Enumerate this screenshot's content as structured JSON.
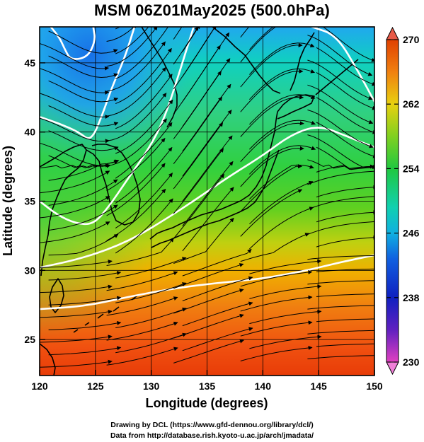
{
  "title": "MSM 06Z01May2025 (500.0hPa)",
  "credits": {
    "line1": "Drawing by DCL (https://www.gfd-dennou.org/library/dcl/)",
    "line2": "Data from http://database.rish.kyoto-u.ac.jp/arch/jmadata/"
  },
  "chart_data": {
    "type": "heatmap",
    "title": "MSM 06Z01May2025 (500.0hPa)",
    "xlabel": "Longitude (degrees)",
    "ylabel": "Latitude  (degrees)",
    "xlim": [
      120,
      150
    ],
    "ylim": [
      22.4,
      47.6
    ],
    "x_ticks": [
      120,
      125,
      130,
      135,
      140,
      145,
      150
    ],
    "y_ticks": [
      25,
      30,
      35,
      40,
      45
    ],
    "grid": true,
    "overlay": "streamlines of wind with arrowheads, white contour lines, black coastlines",
    "colorbar": {
      "min": 230,
      "max": 270,
      "ticks": [
        230,
        238,
        246,
        254,
        262,
        270
      ],
      "placement": "right",
      "colors": [
        "#e040c0",
        "#1020c0",
        "#10b0e0",
        "#20c840",
        "#e8d010",
        "#e04000"
      ]
    },
    "contours": [
      {
        "value": 246,
        "points": [
          [
            124.8,
            47.6
          ],
          [
            125.0,
            46.6
          ],
          [
            124.3,
            45.4
          ],
          [
            122.8,
            45.2
          ],
          [
            122.3,
            45.9
          ],
          [
            121.8,
            46.8
          ],
          [
            121.0,
            47.6
          ]
        ]
      },
      {
        "value": 250,
        "points": [
          [
            120.0,
            41.1
          ],
          [
            121.8,
            40.6
          ],
          [
            123.5,
            40.0
          ],
          [
            124.6,
            39.3
          ],
          [
            125.6,
            41.2
          ],
          [
            126.5,
            43.3
          ],
          [
            127.6,
            45.3
          ],
          [
            128.5,
            47.6
          ]
        ]
      },
      {
        "value": 254,
        "points": [
          [
            120.0,
            35.0
          ],
          [
            121.6,
            34.0
          ],
          [
            123.2,
            33.4
          ],
          [
            124.8,
            33.3
          ],
          [
            126.2,
            34.6
          ],
          [
            127.8,
            36.5
          ],
          [
            129.8,
            38.8
          ],
          [
            131.2,
            41.0
          ],
          [
            132.6,
            44.5
          ],
          [
            133.8,
            47.6
          ]
        ]
      },
      {
        "value": 254,
        "points": [
          [
            144.4,
            47.6
          ],
          [
            146.6,
            47.0
          ],
          [
            148.6,
            44.3
          ],
          [
            150.0,
            42.2
          ]
        ]
      },
      {
        "value": 258,
        "points": [
          [
            120.0,
            30.2
          ],
          [
            124.0,
            30.9
          ],
          [
            128.0,
            32.1
          ],
          [
            131.5,
            33.8
          ],
          [
            134.5,
            35.4
          ],
          [
            137.0,
            36.8
          ],
          [
            140.0,
            38.3
          ],
          [
            142.5,
            39.8
          ],
          [
            145.0,
            40.5
          ],
          [
            147.5,
            39.7
          ],
          [
            150.0,
            38.9
          ]
        ]
      },
      {
        "value": 262,
        "points": [
          [
            120.0,
            27.2
          ],
          [
            124.0,
            27.4
          ],
          [
            128.0,
            28.1
          ],
          [
            132.0,
            28.7
          ],
          [
            136.0,
            29.1
          ],
          [
            140.0,
            29.4
          ],
          [
            144.0,
            30.0
          ],
          [
            147.0,
            30.6
          ],
          [
            150.0,
            31.1
          ]
        ]
      }
    ]
  }
}
